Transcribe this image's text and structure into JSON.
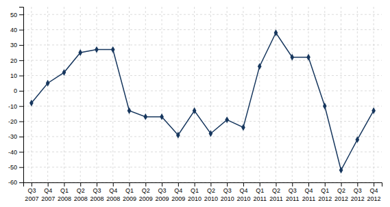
{
  "chart_data": {
    "type": "line",
    "categories": [
      [
        "Q3",
        "2007"
      ],
      [
        "Q4",
        "2007"
      ],
      [
        "Q1",
        "2008"
      ],
      [
        "Q2",
        "2008"
      ],
      [
        "Q3",
        "2008"
      ],
      [
        "Q4",
        "2008"
      ],
      [
        "Q1",
        "2009"
      ],
      [
        "Q2",
        "2009"
      ],
      [
        "Q3",
        "2009"
      ],
      [
        "Q4",
        "2009"
      ],
      [
        "Q1",
        "2010"
      ],
      [
        "Q2",
        "2010"
      ],
      [
        "Q3",
        "2010"
      ],
      [
        "Q4",
        "2010"
      ],
      [
        "Q1",
        "2011"
      ],
      [
        "Q2",
        "2011"
      ],
      [
        "Q3",
        "2011"
      ],
      [
        "Q4",
        "2011"
      ],
      [
        "Q1",
        "2012"
      ],
      [
        "Q2",
        "2012"
      ],
      [
        "Q3",
        "2012"
      ],
      [
        "Q4",
        "2012"
      ]
    ],
    "values": [
      -8,
      5,
      12,
      25,
      27,
      27,
      -13,
      -17,
      -17,
      -29,
      -13,
      -28,
      -19,
      -24,
      16,
      38,
      22,
      22,
      -10,
      -52,
      -32,
      -13
    ],
    "color": "#17375E",
    "marker": "diamond",
    "ylim": [
      -60,
      55
    ],
    "yticks": [
      -60,
      -50,
      -40,
      -30,
      -20,
      -10,
      0,
      10,
      20,
      30,
      40,
      50
    ],
    "grid": true
  }
}
